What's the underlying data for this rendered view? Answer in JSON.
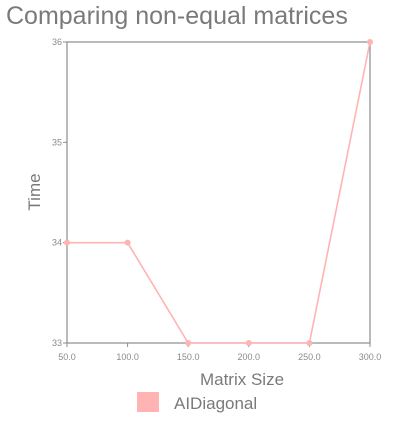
{
  "chart_data": {
    "type": "line",
    "title": "Comparing non-equal matrices",
    "xlabel": "Matrix Size",
    "ylabel": "Time",
    "x": [
      50.0,
      100.0,
      150.0,
      200.0,
      250.0,
      300.0
    ],
    "x_tick_labels": [
      "50.0",
      "100.0",
      "150.0",
      "200.0",
      "250.0",
      "300.0"
    ],
    "y_tick_labels": [
      "33",
      "34",
      "35",
      "36"
    ],
    "xlim": [
      50,
      300
    ],
    "ylim": [
      33,
      36
    ],
    "grid": false,
    "legend_position": "bottom",
    "series": [
      {
        "name": "AIDiagonal",
        "values": [
          34,
          34,
          33,
          33,
          33,
          36
        ],
        "color": "#ffb3b3"
      }
    ]
  }
}
